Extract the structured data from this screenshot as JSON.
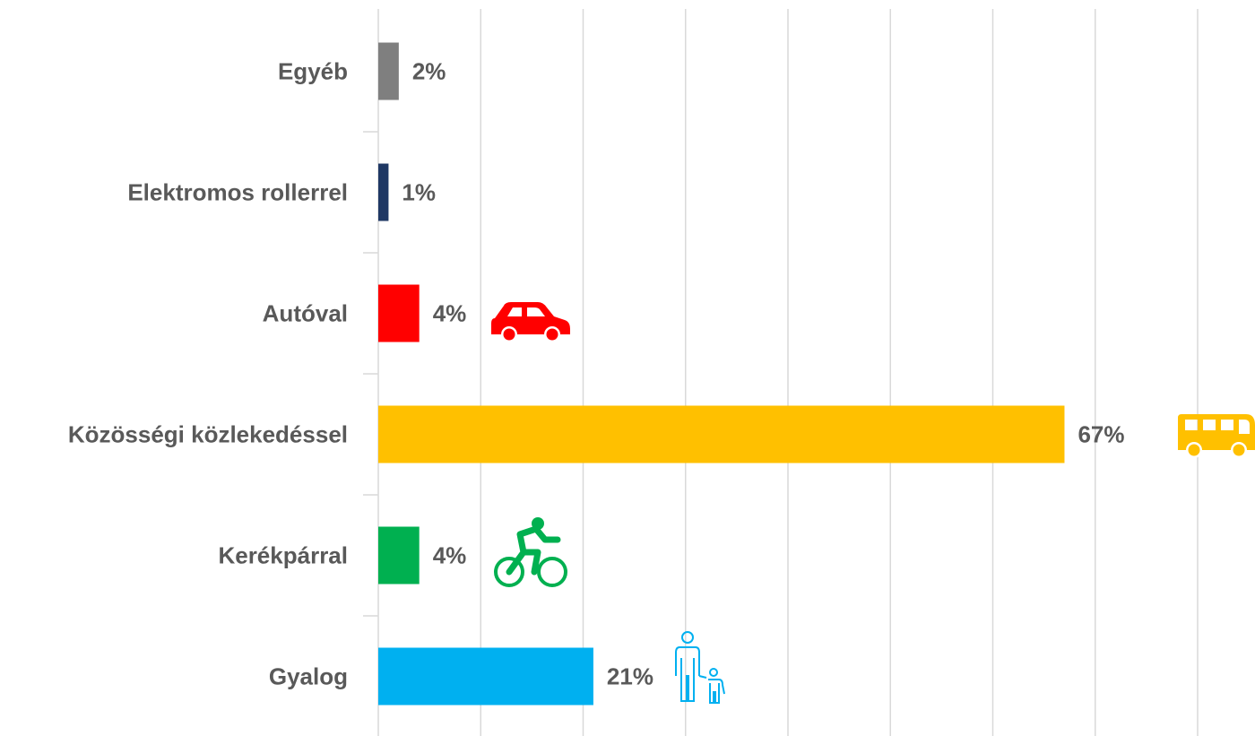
{
  "chart_data": {
    "type": "hbar",
    "categories": [
      "Egyéb",
      "Elektromos rollerrel",
      "Autóval",
      "Közösségi közlekedéssel",
      "Kerékpárral",
      "Gyalog"
    ],
    "values": [
      2,
      1,
      4,
      67,
      4,
      21
    ],
    "value_labels": [
      "2%",
      "1%",
      "4%",
      "67%",
      "4%",
      "21%"
    ],
    "colors": [
      "#7f7f7f",
      "#1f3864",
      "#ff0000",
      "#ffc000",
      "#00b050",
      "#00b0f0"
    ],
    "xlim": [
      0,
      80
    ],
    "xticks": [
      0,
      10,
      20,
      30,
      40,
      50,
      60,
      70,
      80
    ],
    "grid": true
  }
}
